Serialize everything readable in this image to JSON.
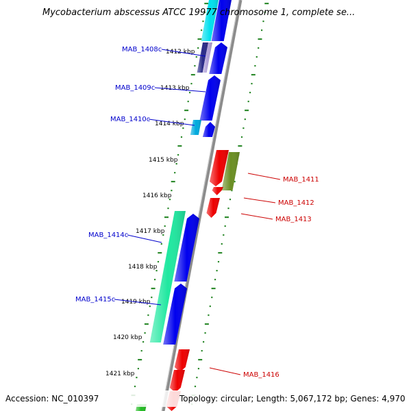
{
  "title": "Mycobacterium abscessus ATCC 19977 chromosome 1, complete se...",
  "footer": {
    "accession": "Accession: NC_010397",
    "summary": "Topology: circular; Length: 5,067,172 bp; Genes: 4,970"
  },
  "colors": {
    "backbone": "#8c8c8c",
    "forward_ticks": "#2e8b2e",
    "reverse_ticks": "#2e8b2e",
    "label_reverse": "#0000cc",
    "label_forward": "#cc0000"
  },
  "kbp_ticks": [
    "1412 kbp",
    "1413 kbp",
    "1414 kbp",
    "1415 kbp",
    "1416 kbp",
    "1417 kbp",
    "1418 kbp",
    "1419 kbp",
    "1420 kbp",
    "1421 kbp"
  ],
  "gene_labels": [
    {
      "text": "MAB_1408c",
      "strand": "reverse"
    },
    {
      "text": "MAB_1409c",
      "strand": "reverse"
    },
    {
      "text": "MAB_1410c",
      "strand": "reverse"
    },
    {
      "text": "MAB_1414c",
      "strand": "reverse"
    },
    {
      "text": "MAB_1415c",
      "strand": "reverse"
    },
    {
      "text": "MAB_1411",
      "strand": "forward"
    },
    {
      "text": "MAB_1412",
      "strand": "forward"
    },
    {
      "text": "MAB_1413",
      "strand": "forward"
    },
    {
      "text": "MAB_1416",
      "strand": "forward"
    }
  ],
  "features": [
    {
      "color": "#00e0ee",
      "track": "inner"
    },
    {
      "color": "#2a2a88",
      "track": "inner"
    },
    {
      "color": "#b0a0d8",
      "track": "inner"
    },
    {
      "color": "#0000ee",
      "track": "inner"
    },
    {
      "color": "#0000ee",
      "track": "inner"
    },
    {
      "color": "#0000ee",
      "track": "inner"
    },
    {
      "color": "#00aadd",
      "track": "inner"
    },
    {
      "color": "#0000ee",
      "track": "inner"
    },
    {
      "color": "#ee0000",
      "track": "outer"
    },
    {
      "color": "#6b8e23",
      "track": "outer"
    },
    {
      "color": "#ee0000",
      "track": "outer"
    },
    {
      "color": "#ee0000",
      "track": "outer"
    },
    {
      "color": "#20e8a0",
      "track": "inner"
    },
    {
      "color": "#0000ee",
      "track": "inner"
    },
    {
      "color": "#0000ee",
      "track": "inner"
    },
    {
      "color": "#ee0000",
      "track": "outer"
    },
    {
      "color": "#ee0000",
      "track": "outer"
    },
    {
      "color": "#ee0000",
      "track": "outer"
    },
    {
      "color": "#22bb22",
      "track": "inner"
    }
  ]
}
